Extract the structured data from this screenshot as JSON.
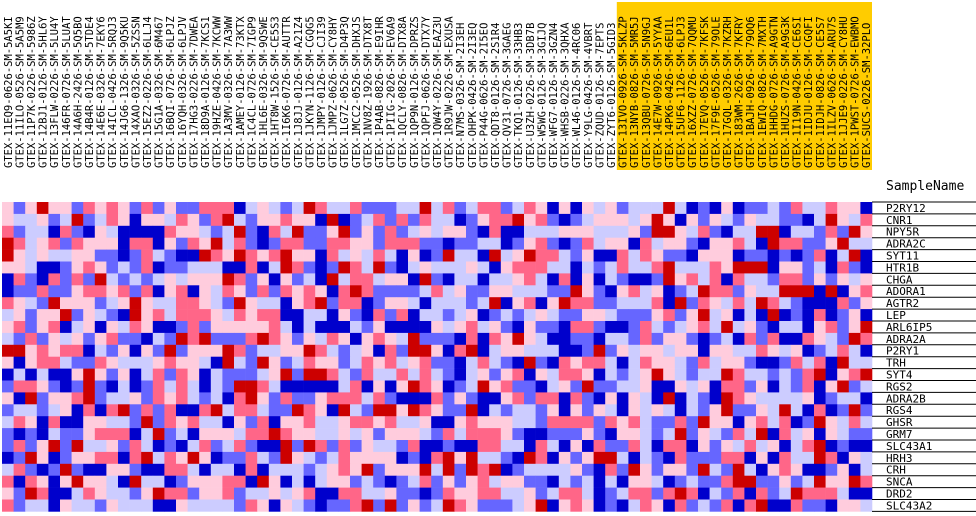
{
  "chart_data": {
    "type": "heatmap",
    "header_label": "SampleName",
    "samples": [
      "GTEX-11EQ9-0626-SM-5A5KI",
      "GTEX-11ILO-0526-SM-5A5M9",
      "GTEX-11P7K-0226-SM-5986Z",
      "GTEX-12BJ1-0126-SM-5HL6Y",
      "GTEX-13FLW-0226-SM-5LU4Y",
      "GTEX-146FR-0726-SM-5LUAT",
      "GTEX-14A6H-2426-SM-5Q5BO",
      "GTEX-14B4R-0126-SM-5TDE4",
      "GTEX-14E6E-0326-SM-7EKY6",
      "GTEX-14ICL-0426-SM-5RQJ3",
      "GTEX-14JG6-1326-SM-9Q5KU",
      "GTEX-14XAO-0326-SM-5ZSSN",
      "GTEX-15EZ2-0226-SM-6LLJ4",
      "GTEX-15G1A-0326-SM-6M467",
      "GTEX-16BQI-0726-SM-6LPJZ",
      "GTEX-16YQH-0326-SM-6LPJV",
      "GTEX-17HG3-0226-SM-7DWEA",
      "GTEX-18D9A-0126-SM-7KCS1",
      "GTEX-19HZE-0426-SM-7KCWW",
      "GTEX-1A3MV-0326-SM-7A3WW",
      "GTEX-1AMEY-0126-SM-73KTX",
      "GTEX-1C4CL-0726-SM-7IGP9",
      "GTEX-1HL6E-0326-SM-9QSWE",
      "GTEX-1HT8W-1526-SM-CE5S3",
      "GTEX-1I6K6-0726-SM-AUTTR",
      "GTEX-1J8JJ-0126-SM-A21Z4",
      "GTEX-1JKYN-1126-SM-CGQG5",
      "GTEX-1JMPY-0126-SM-CJI39",
      "GTEX-1JMPZ-0626-SM-CY8HY",
      "GTEX-1LG7Z-0526-SM-D4P3Q",
      "GTEX-1MCC2-0526-SM-DHXJS",
      "GTEX-1NV8Z-1926-SM-DTX8T",
      "GTEX-1P4AB-0826-SM-E9IHR",
      "GTEX-1PIIG-2026-SM-EV6A9",
      "GTEX-1QCLY-0826-SM-DTX8A",
      "GTEX-1QP9N-0126-SM-DPRZS",
      "GTEX-1QPFJ-0626-SM-DTX7Y",
      "GTEX-1QW4Y-0226-SM-EAZ3U",
      "GTEX-1R9JW-0226-SM-EXUSA",
      "GTEX-N7MS-0326-SM-2I3EH",
      "GTEX-OHPK-0426-SM-2I3EQ",
      "GTEX-P44G-0626-SM-2I5EO",
      "GTEX-QDT8-0126-SM-2S1R4",
      "GTEX-QV31-0726-SM-3GAEG",
      "GTEX-TKQ1-0126-SM-33HB3",
      "GTEX-U3ZH-0226-SM-3DB7B",
      "GTEX-W5WG-0126-SM-3GIJQ",
      "GTEX-WFG7-0126-SM-3GZN4",
      "GTEX-WHSB-0226-SM-3QHXA",
      "GTEX-WL46-0126-SM-4RC06",
      "GTEX-Y9LG-0426-SM-4VBRT",
      "GTEX-ZQUD-0126-SM-7EPTS",
      "GTEX-ZYT6-0126-SM-5GID3",
      "GTEX-13IVO-0926-SM-5KLZP",
      "GTEX-13NYB-0826-SM-5MR5J",
      "GTEX-13QBU-0726-SM-5N9GJ",
      "GTEX-14E7W-0926-SM-5YYAA",
      "GTEX-14PK6-0426-SM-6EU1L",
      "GTEX-15UF6-1126-SM-6LPJ3",
      "GTEX-16XZZ-0726-SM-7QQMU",
      "GTEX-17EVQ-0526-SM-7KFSK",
      "GTEX-17F9E-0526-SM-79OLE",
      "GTEX-17GQL-0326-SM-7KZRH",
      "GTEX-183WM-2626-SM-7KFRY",
      "GTEX-1BAJH-0926-SM-79OQ6",
      "GTEX-1EWIQ-0826-SM-7MXTH",
      "GTEX-1HHDG-0726-SM-A9GTN",
      "GTEX-1HUZS-0726-SM-A9G3K",
      "GTEX-1I19N-0426-SM-CE6SI",
      "GTEX-1IDJU-0126-SM-CGQFI",
      "GTEX-1IDJH-0826-SM-CE5S7",
      "GTEX-1ILZV-0626-SM-ARU7S",
      "GTEX-1JJE9-0226-SM-CY8HU",
      "GTEX-1PWST-0726-SM-EWBMO",
      "GTEX-SUCS-0226-SM-32PLO"
    ],
    "group_a_count": 53,
    "group_b_count": 22,
    "genes": [
      "P2RY12",
      "CNR1",
      "NPY5R",
      "ADRA2C",
      "SYT11",
      "HTR1B",
      "CHGA",
      "ADORA1",
      "AGTR2",
      "LEP",
      "ARL6IP5",
      "ADRA2A",
      "P2RY1",
      "TRH",
      "SYT4",
      "RGS2",
      "ADRA2B",
      "RGS4",
      "GHSR",
      "GRM7",
      "SLC43A1",
      "HRH3",
      "CRH",
      "SNCA",
      "DRD2",
      "SLC43A2"
    ],
    "color_scale": {
      "min_color": "#0000cc",
      "low_color": "#6666ff",
      "mid_low_color": "#ccccff",
      "mid_high_color": "#ffccdd",
      "high_color": "#ff6688",
      "max_color": "#cc0000"
    },
    "group_b_label_bg": "#ffcc00",
    "values": []
  }
}
